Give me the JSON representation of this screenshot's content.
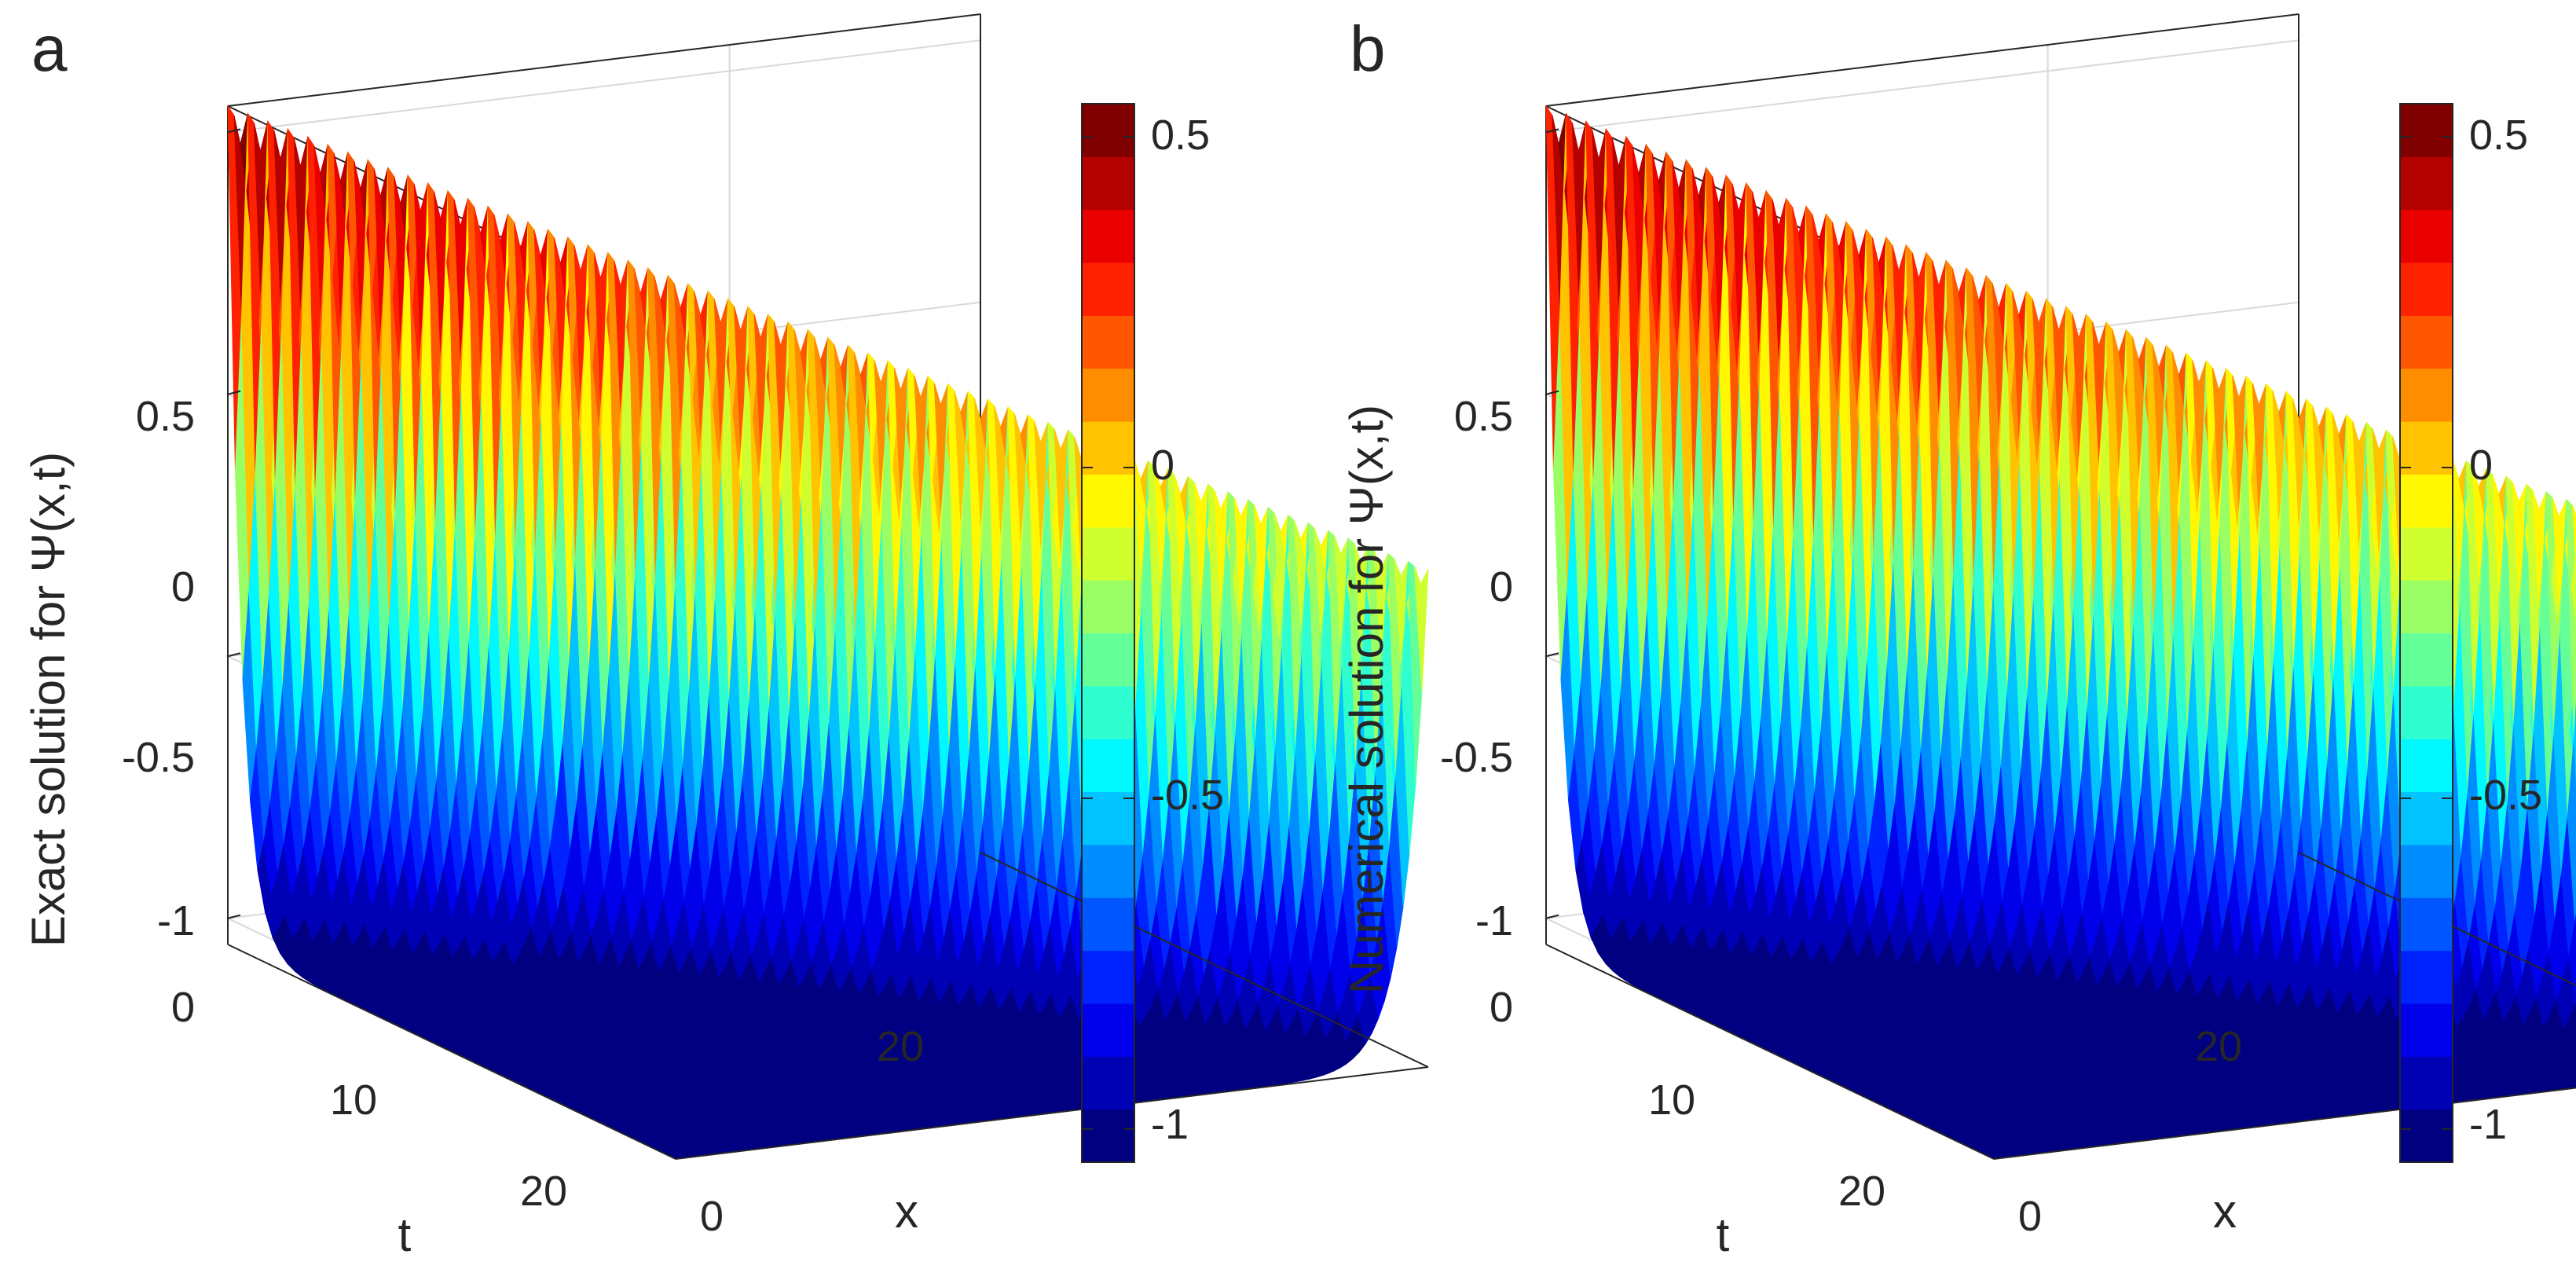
{
  "colors": {
    "axis": "#262626",
    "grid": "#d9d9d9",
    "background": "#ffffff",
    "colormap_name": "jet",
    "colormap": [
      "#000080",
      "#0000ff",
      "#00ffff",
      "#ffff00",
      "#ff0000",
      "#800000"
    ]
  },
  "chart_data": [
    {
      "type": "surface",
      "panel_label": "a",
      "zlabel": "Exact solution for Ψ(x,t)",
      "xlabel": "x",
      "tlabel": "t",
      "x_range": [
        0,
        30
      ],
      "t_range": [
        0,
        30
      ],
      "z_range": [
        -1.05,
        0.55
      ],
      "x_ticks": [
        0,
        20
      ],
      "t_ticks": [
        0,
        10,
        20
      ],
      "z_ticks": [
        0.5,
        0,
        -0.5,
        -1
      ],
      "x_tick_labels": [
        "0",
        "20"
      ],
      "t_tick_labels": [
        "0",
        "10",
        "20"
      ],
      "z_tick_labels": [
        "0.5",
        "0",
        "-0.5",
        "-1"
      ],
      "surface": {
        "baseline": -1.05,
        "front_start_x": 0,
        "front_speed_x_per_t": 1,
        "peak_at_t0": 0.55,
        "peak_at_t30": -0.1,
        "decay_width": 0.9,
        "rise_width": 1.6
      },
      "colorbar": {
        "levels": 20,
        "range": [
          -1.05,
          0.55
        ],
        "ticks": [
          0.5,
          0,
          -0.5,
          -1
        ],
        "tick_labels": [
          "0.5",
          "0",
          "-0.5",
          "-1"
        ]
      }
    },
    {
      "type": "surface",
      "panel_label": "b",
      "zlabel": "Numerical solution for Ψ(x,t)",
      "xlabel": "x",
      "tlabel": "t",
      "x_range": [
        0,
        30
      ],
      "t_range": [
        0,
        30
      ],
      "z_range": [
        -1.05,
        0.55
      ],
      "x_ticks": [
        0,
        20
      ],
      "t_ticks": [
        0,
        10,
        20
      ],
      "z_ticks": [
        0.5,
        0,
        -0.5,
        -1
      ],
      "x_tick_labels": [
        "0",
        "20"
      ],
      "t_tick_labels": [
        "0",
        "10",
        "20"
      ],
      "z_tick_labels": [
        "0.5",
        "0",
        "-0.5",
        "-1"
      ],
      "surface": {
        "baseline": -1.05,
        "front_start_x": 0,
        "front_speed_x_per_t": 1,
        "peak_at_t0": 0.55,
        "peak_at_t30": -0.1,
        "decay_width": 0.9,
        "rise_width": 1.6
      },
      "colorbar": {
        "levels": 20,
        "range": [
          -1.05,
          0.55
        ],
        "ticks": [
          0.5,
          0,
          -0.5,
          -1
        ],
        "tick_labels": [
          "0.5",
          "0",
          "-0.5",
          "-1"
        ]
      }
    }
  ]
}
